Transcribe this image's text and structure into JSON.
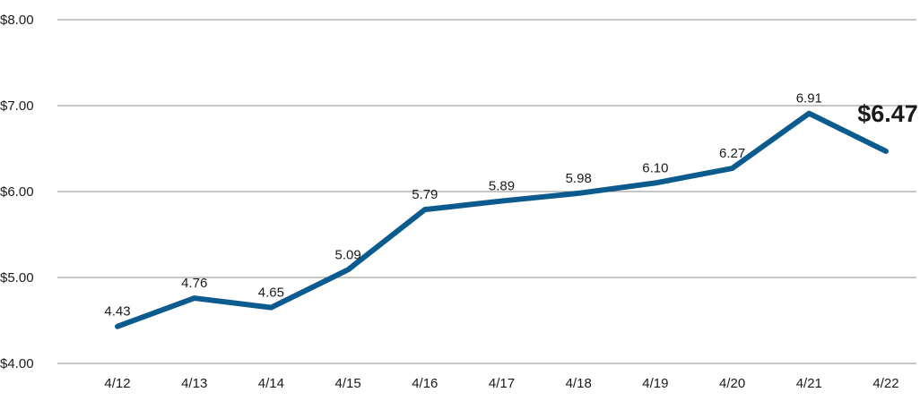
{
  "chart_data": {
    "type": "line",
    "title": "",
    "xlabel": "",
    "ylabel": "",
    "categories": [
      "4/12",
      "4/13",
      "4/14",
      "4/15",
      "4/16",
      "4/17",
      "4/18",
      "4/19",
      "4/20",
      "4/21",
      "4/22"
    ],
    "series": [
      {
        "values": [
          4.43,
          4.76,
          4.65,
          5.09,
          5.79,
          5.89,
          5.98,
          6.1,
          6.27,
          6.91,
          6.47
        ],
        "labels": [
          "4.43",
          "4.76",
          "4.65",
          "5.09",
          "5.79",
          "5.89",
          "5.98",
          "6.10",
          "6.27",
          "6.91",
          "$6.47"
        ],
        "color": "#0b5b8f"
      }
    ],
    "ylim": [
      4,
      8
    ],
    "yticks": [
      4,
      5,
      6,
      7,
      8
    ],
    "ytick_labels": [
      "$4.00",
      "$5.00",
      "$6.00",
      "$7.00",
      "$8.00"
    ],
    "grid": "horizontal",
    "legend": "none"
  }
}
